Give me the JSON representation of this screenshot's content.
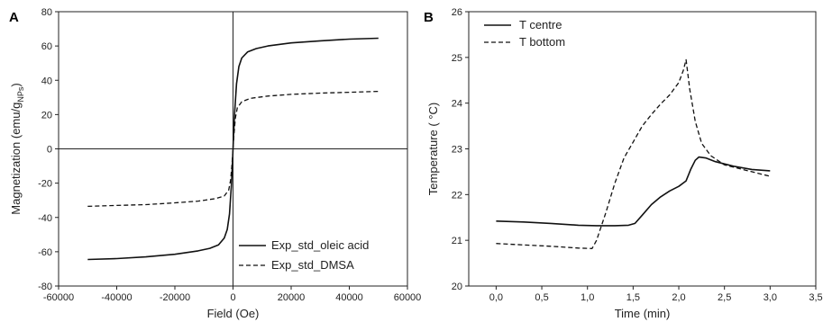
{
  "chart_data": [
    {
      "panel_label": "A",
      "type": "line",
      "xlabel": "Field (Oe)",
      "ylabel_main": "Magnetization (emu/g",
      "ylabel_sub": "NPs",
      "ylabel_end": ")",
      "xlim": [
        -60000,
        60000
      ],
      "ylim": [
        -80,
        80
      ],
      "xticks": [
        -60000,
        -40000,
        -20000,
        0,
        20000,
        40000,
        60000
      ],
      "yticks": [
        -80,
        -60,
        -40,
        -20,
        0,
        20,
        40,
        60,
        80
      ],
      "zero_lines": true,
      "legend": "bottom-right",
      "series": [
        {
          "name": "Exp_std_oleic acid",
          "style": "solid",
          "points": [
            [
              -50000,
              -64.5
            ],
            [
              -40000,
              -64
            ],
            [
              -30000,
              -63
            ],
            [
              -20000,
              -61.5
            ],
            [
              -12000,
              -59.5
            ],
            [
              -8000,
              -58
            ],
            [
              -5000,
              -56
            ],
            [
              -3000,
              -52
            ],
            [
              -2000,
              -47
            ],
            [
              -1200,
              -38
            ],
            [
              -600,
              -22
            ],
            [
              -200,
              -8
            ],
            [
              0,
              0
            ],
            [
              200,
              8
            ],
            [
              600,
              22
            ],
            [
              1200,
              38
            ],
            [
              2000,
              48
            ],
            [
              3000,
              53
            ],
            [
              5000,
              56.5
            ],
            [
              8000,
              58.5
            ],
            [
              12000,
              60
            ],
            [
              20000,
              61.8
            ],
            [
              30000,
              63
            ],
            [
              40000,
              64
            ],
            [
              50000,
              64.5
            ]
          ]
        },
        {
          "name": "Exp_std_DMSA",
          "style": "dashed",
          "points": [
            [
              -50000,
              -33.5
            ],
            [
              -40000,
              -33
            ],
            [
              -30000,
              -32.5
            ],
            [
              -20000,
              -31.5
            ],
            [
              -12000,
              -30.5
            ],
            [
              -6000,
              -29
            ],
            [
              -3000,
              -27.5
            ],
            [
              -1500,
              -24
            ],
            [
              -800,
              -18
            ],
            [
              -300,
              -8
            ],
            [
              0,
              0
            ],
            [
              300,
              8
            ],
            [
              800,
              18
            ],
            [
              1500,
              24
            ],
            [
              3000,
              27.5
            ],
            [
              6000,
              29.5
            ],
            [
              12000,
              30.8
            ],
            [
              20000,
              31.8
            ],
            [
              30000,
              32.5
            ],
            [
              40000,
              33
            ],
            [
              50000,
              33.5
            ]
          ]
        }
      ]
    },
    {
      "panel_label": "B",
      "type": "line",
      "xlabel": "Time (min)",
      "ylabel": "Temperature ( °C)",
      "xlim": [
        -0.3,
        3.5
      ],
      "ylim": [
        20,
        26
      ],
      "xticks": [
        0.0,
        0.5,
        1.0,
        1.5,
        2.0,
        2.5,
        3.0,
        3.5
      ],
      "xtick_labels": [
        "0,0",
        "0,5",
        "1,0",
        "1,5",
        "2,0",
        "2,5",
        "3,0",
        "3,5"
      ],
      "yticks": [
        20,
        21,
        22,
        23,
        24,
        25,
        26
      ],
      "legend": "top-left",
      "series": [
        {
          "name": "T centre",
          "style": "solid",
          "points": [
            [
              0.0,
              21.42
            ],
            [
              0.3,
              21.4
            ],
            [
              0.6,
              21.37
            ],
            [
              0.9,
              21.33
            ],
            [
              1.1,
              21.32
            ],
            [
              1.3,
              21.32
            ],
            [
              1.45,
              21.33
            ],
            [
              1.52,
              21.37
            ],
            [
              1.6,
              21.55
            ],
            [
              1.7,
              21.78
            ],
            [
              1.8,
              21.95
            ],
            [
              1.9,
              22.08
            ],
            [
              2.0,
              22.18
            ],
            [
              2.08,
              22.3
            ],
            [
              2.13,
              22.55
            ],
            [
              2.18,
              22.75
            ],
            [
              2.22,
              22.82
            ],
            [
              2.3,
              22.8
            ],
            [
              2.4,
              22.72
            ],
            [
              2.6,
              22.62
            ],
            [
              2.8,
              22.55
            ],
            [
              3.0,
              22.52
            ]
          ]
        },
        {
          "name": "T bottom",
          "style": "dashed",
          "points": [
            [
              0.0,
              20.93
            ],
            [
              0.3,
              20.9
            ],
            [
              0.6,
              20.87
            ],
            [
              0.9,
              20.83
            ],
            [
              1.05,
              20.82
            ],
            [
              1.1,
              21.0
            ],
            [
              1.2,
              21.6
            ],
            [
              1.3,
              22.25
            ],
            [
              1.4,
              22.8
            ],
            [
              1.5,
              23.15
            ],
            [
              1.6,
              23.5
            ],
            [
              1.7,
              23.75
            ],
            [
              1.8,
              23.98
            ],
            [
              1.9,
              24.18
            ],
            [
              2.0,
              24.45
            ],
            [
              2.05,
              24.72
            ],
            [
              2.08,
              24.95
            ],
            [
              2.12,
              24.3
            ],
            [
              2.18,
              23.6
            ],
            [
              2.25,
              23.12
            ],
            [
              2.35,
              22.85
            ],
            [
              2.5,
              22.65
            ],
            [
              2.7,
              22.55
            ],
            [
              3.0,
              22.4
            ]
          ]
        }
      ]
    }
  ]
}
